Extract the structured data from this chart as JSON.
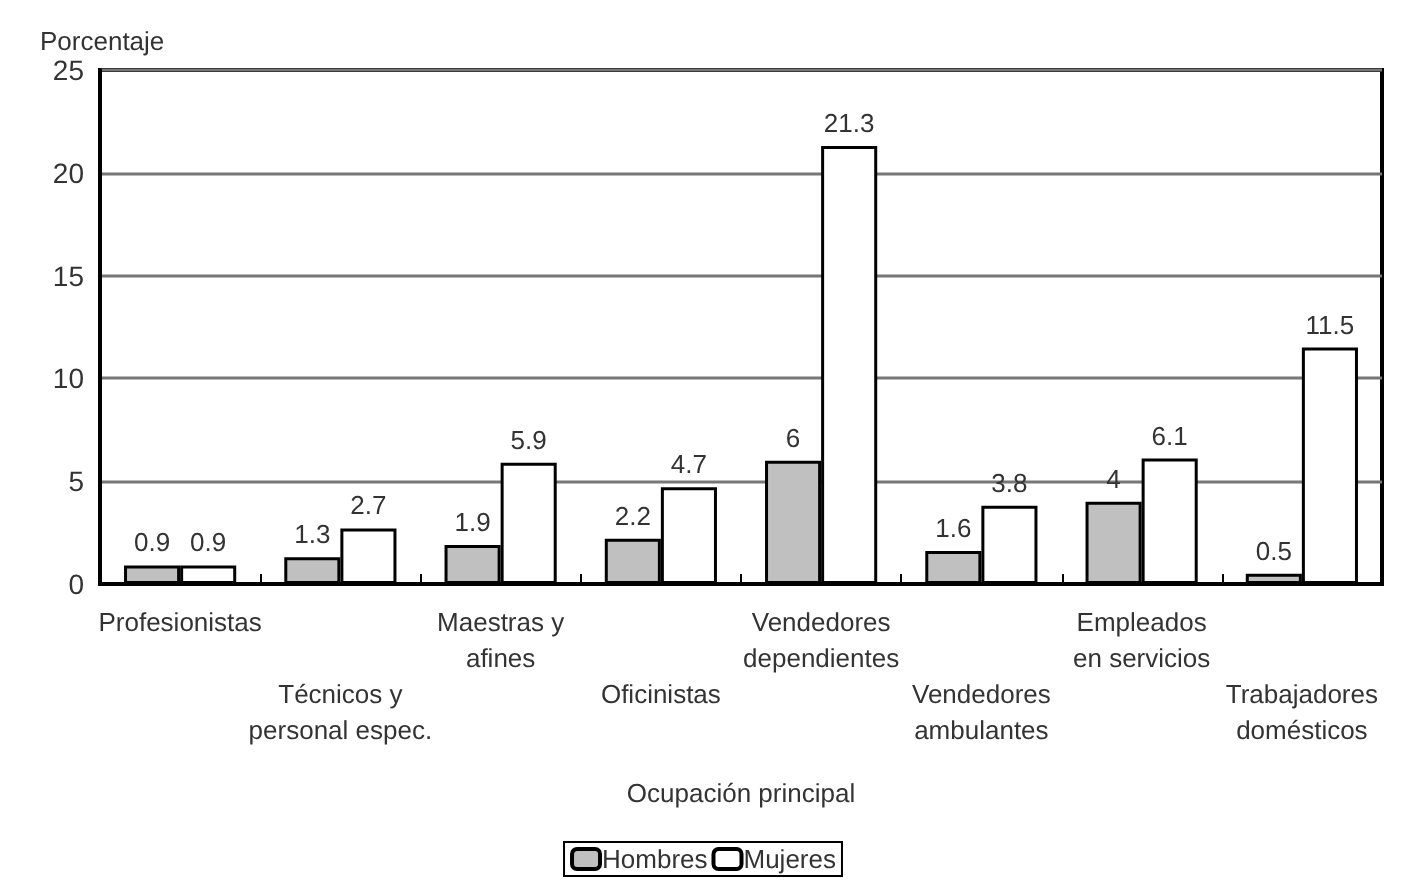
{
  "chart_data": {
    "type": "bar",
    "ylabel": "Porcentaje",
    "xlabel": "Ocupación principal",
    "categories": [
      "Profesionistas",
      "Técnicos y\npersonal espec.",
      "Maestras y\nafines",
      "Oficinistas",
      "Vendedores\ndependientes",
      "Vendedores\nambulantes",
      "Empleados\nen servicios",
      "Trabajadores\ndomésticos"
    ],
    "series": [
      {
        "name": "Hombres",
        "color": "#c0c0c0",
        "values": [
          0.9,
          1.3,
          1.9,
          2.2,
          6,
          1.6,
          4,
          0.5
        ]
      },
      {
        "name": "Mujeres",
        "color": "#ffffff",
        "values": [
          0.9,
          2.7,
          5.9,
          4.7,
          21.3,
          3.8,
          6.1,
          11.5
        ]
      }
    ],
    "ylim": [
      0,
      25
    ],
    "yticks": [
      0,
      5,
      10,
      15,
      20,
      25
    ],
    "grid": "y",
    "legend": "bottom",
    "data_labels": true
  }
}
